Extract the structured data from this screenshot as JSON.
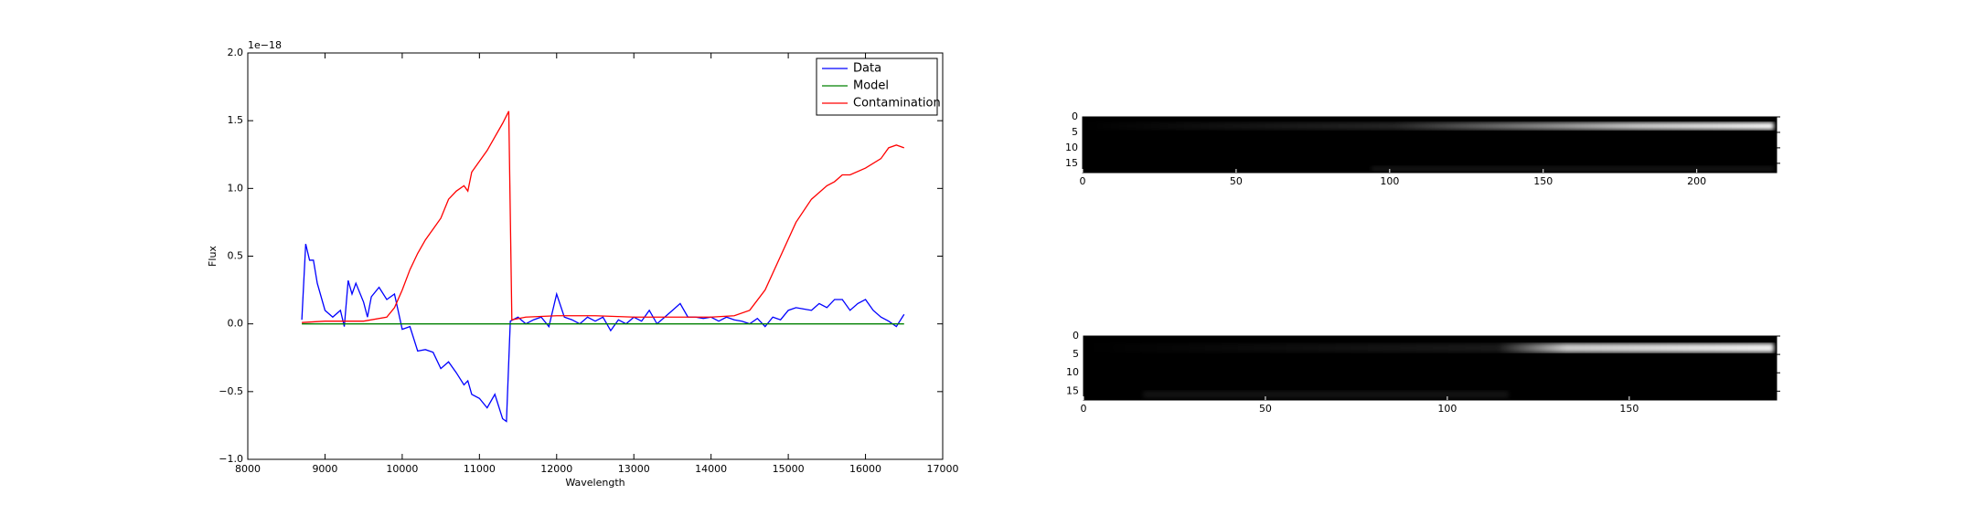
{
  "chart_data": [
    {
      "type": "line",
      "xlabel": "Wavelength",
      "ylabel": "Flux",
      "offset_text": "1e−18",
      "xlim": [
        8000,
        17000
      ],
      "xticks": [
        8000,
        9000,
        10000,
        11000,
        12000,
        13000,
        14000,
        15000,
        16000,
        17000
      ],
      "ylim": [
        -1.0,
        2.0
      ],
      "yticks": [
        {
          "value": -1.0,
          "label": "−1.0"
        },
        {
          "value": -0.5,
          "label": "−0.5"
        },
        {
          "value": 0.0,
          "label": "0.0"
        },
        0.5,
        {
          "value": 1.0,
          "label": "1.0"
        },
        1.5,
        {
          "value": 2.0,
          "label": "2.0"
        }
      ],
      "legend": "upper right",
      "series": [
        {
          "name": "Data",
          "color": "#0000ff",
          "x": [
            8700,
            8750,
            8800,
            8850,
            8900,
            9000,
            9100,
            9200,
            9250,
            9300,
            9350,
            9400,
            9500,
            9550,
            9600,
            9700,
            9800,
            9900,
            10000,
            10100,
            10200,
            10300,
            10400,
            10500,
            10600,
            10700,
            10800,
            10850,
            10900,
            11000,
            11100,
            11200,
            11300,
            11350,
            11400,
            11500,
            11600,
            11700,
            11800,
            11900,
            12000,
            12100,
            12200,
            12300,
            12400,
            12500,
            12600,
            12700,
            12800,
            12900,
            13000,
            13100,
            13200,
            13300,
            13400,
            13500,
            13600,
            13700,
            13800,
            13900,
            14000,
            14100,
            14200,
            14300,
            14400,
            14500,
            14600,
            14700,
            14800,
            14900,
            15000,
            15100,
            15200,
            15300,
            15400,
            15500,
            15600,
            15700,
            15800,
            15900,
            16000,
            16100,
            16200,
            16300,
            16400,
            16500
          ],
          "values": [
            0.03,
            0.59,
            0.47,
            0.47,
            0.3,
            0.1,
            0.05,
            0.1,
            -0.02,
            0.32,
            0.22,
            0.3,
            0.16,
            0.05,
            0.2,
            0.27,
            0.18,
            0.22,
            -0.04,
            -0.02,
            -0.2,
            -0.19,
            -0.21,
            -0.33,
            -0.28,
            -0.36,
            -0.45,
            -0.42,
            -0.52,
            -0.55,
            -0.62,
            -0.52,
            -0.7,
            -0.72,
            0.02,
            0.05,
            0.0,
            0.03,
            0.05,
            -0.02,
            0.22,
            0.05,
            0.03,
            0.0,
            0.05,
            0.02,
            0.05,
            -0.05,
            0.03,
            0.0,
            0.05,
            0.02,
            0.1,
            0.0,
            0.05,
            0.1,
            0.15,
            0.05,
            0.05,
            0.04,
            0.05,
            0.02,
            0.05,
            0.03,
            0.02,
            0.0,
            0.04,
            -0.02,
            0.05,
            0.03,
            0.1,
            0.12,
            0.11,
            0.1,
            0.15,
            0.12,
            0.18,
            0.18,
            0.1,
            0.15,
            0.18,
            0.1,
            0.05,
            0.02,
            -0.02,
            0.07
          ]
        },
        {
          "name": "Model",
          "color": "#008000",
          "x": [
            8700,
            16500
          ],
          "values": [
            0.0,
            0.0
          ]
        },
        {
          "name": "Contamination",
          "color": "#ff0000",
          "x": [
            8700,
            9000,
            9500,
            9800,
            9900,
            10000,
            10100,
            10200,
            10300,
            10400,
            10500,
            10600,
            10700,
            10800,
            10850,
            10900,
            11000,
            11100,
            11200,
            11300,
            11380,
            11420,
            11600,
            12000,
            12500,
            13000,
            13500,
            14000,
            14300,
            14500,
            14700,
            14900,
            15100,
            15300,
            15500,
            15600,
            15700,
            15800,
            16000,
            16200,
            16300,
            16400,
            16500
          ],
          "values": [
            0.01,
            0.02,
            0.02,
            0.05,
            0.12,
            0.25,
            0.4,
            0.52,
            0.62,
            0.7,
            0.78,
            0.92,
            0.98,
            1.02,
            0.98,
            1.12,
            1.2,
            1.28,
            1.38,
            1.48,
            1.57,
            0.03,
            0.05,
            0.06,
            0.06,
            0.05,
            0.05,
            0.05,
            0.06,
            0.1,
            0.25,
            0.5,
            0.75,
            0.92,
            1.02,
            1.05,
            1.1,
            1.1,
            1.15,
            1.22,
            1.3,
            1.32,
            1.3
          ]
        }
      ]
    },
    {
      "type": "image",
      "xlim": [
        0,
        226
      ],
      "ylim": [
        18,
        0
      ],
      "xticks": [
        0,
        50,
        100,
        150,
        200
      ],
      "yticks": [
        0,
        5,
        10,
        15
      ]
    },
    {
      "type": "image",
      "xlim": [
        0,
        190.5
      ],
      "ylim": [
        17.4,
        0
      ],
      "xticks": [
        0,
        50,
        100,
        150
      ],
      "yticks": [
        0,
        5,
        10,
        15
      ]
    }
  ]
}
